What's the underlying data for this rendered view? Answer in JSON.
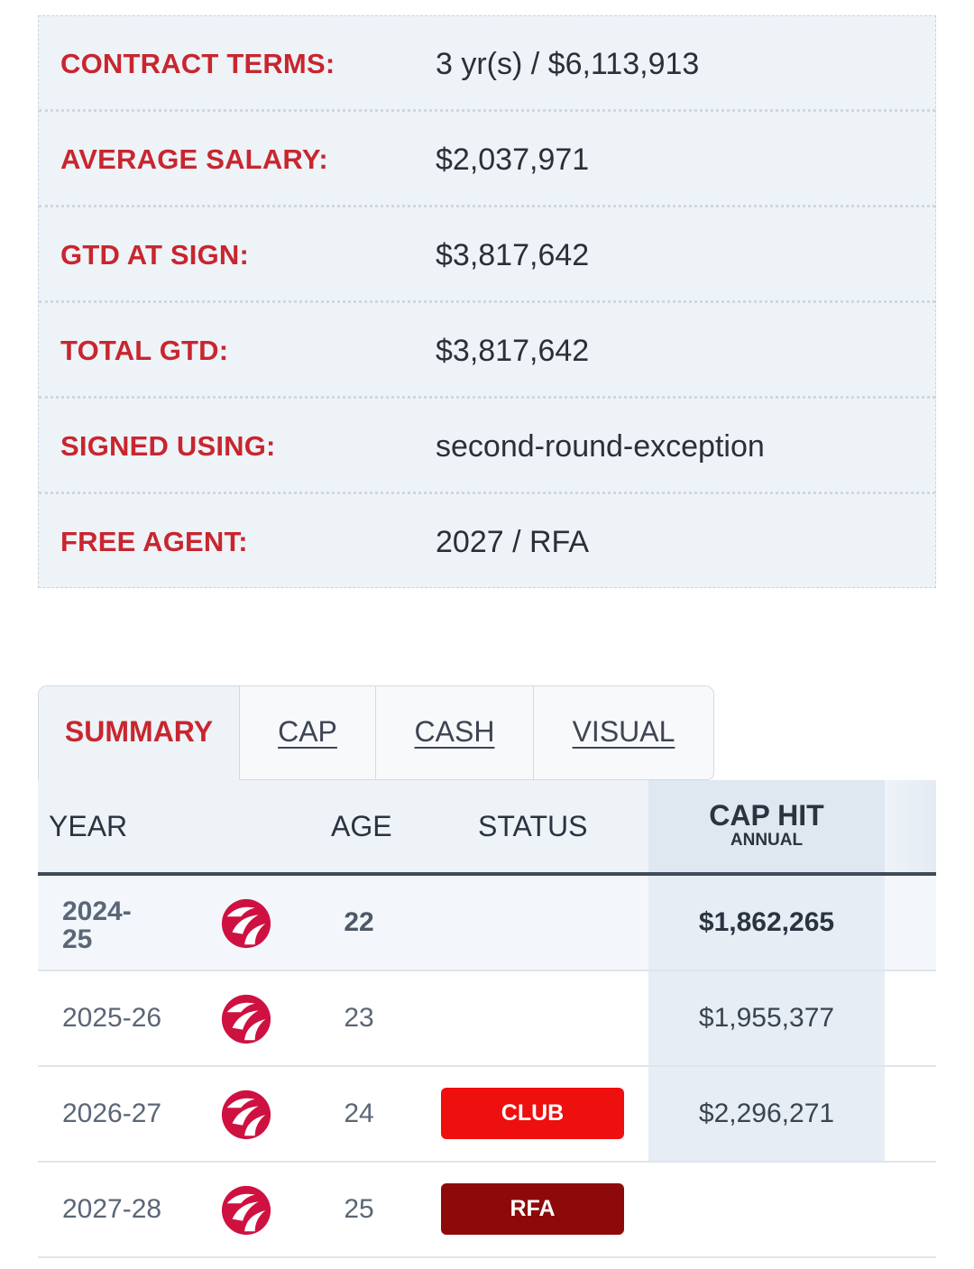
{
  "contract": {
    "rows": [
      {
        "label": "CONTRACT TERMS:",
        "value": "3 yr(s) / $6,113,913"
      },
      {
        "label": "AVERAGE SALARY:",
        "value": "$2,037,971"
      },
      {
        "label": "GTD AT SIGN:",
        "value": "$3,817,642"
      },
      {
        "label": "TOTAL GTD:",
        "value": "$3,817,642"
      },
      {
        "label": "SIGNED USING:",
        "value": "second-round-exception"
      },
      {
        "label": "FREE AGENT:",
        "value": "2027 / RFA"
      }
    ]
  },
  "tabs": [
    "SUMMARY",
    "CAP",
    "CASH",
    "VISUAL"
  ],
  "table": {
    "headers": {
      "year": "YEAR",
      "age": "AGE",
      "status": "STATUS",
      "cap_hit": "CAP HIT",
      "cap_hit_sub": "ANNUAL"
    },
    "rows": [
      {
        "year": "2024-\n25",
        "team_icon": "raptors-logo-icon",
        "age": "22",
        "status": "",
        "cap_hit": "$1,862,265"
      },
      {
        "year": "2025-26",
        "team_icon": "raptors-logo-icon",
        "age": "23",
        "status": "",
        "cap_hit": "$1,955,377"
      },
      {
        "year": "2026-27",
        "team_icon": "raptors-logo-icon",
        "age": "24",
        "status": "CLUB",
        "cap_hit": "$2,296,271"
      },
      {
        "year": "2027-28",
        "team_icon": "raptors-logo-icon",
        "age": "25",
        "status": "RFA",
        "cap_hit": ""
      }
    ]
  },
  "colors": {
    "label_red": "#c8262f",
    "club_badge": "#ee0f0f",
    "rfa_badge": "#8e0a0a",
    "logo_red": "#ce1141"
  }
}
